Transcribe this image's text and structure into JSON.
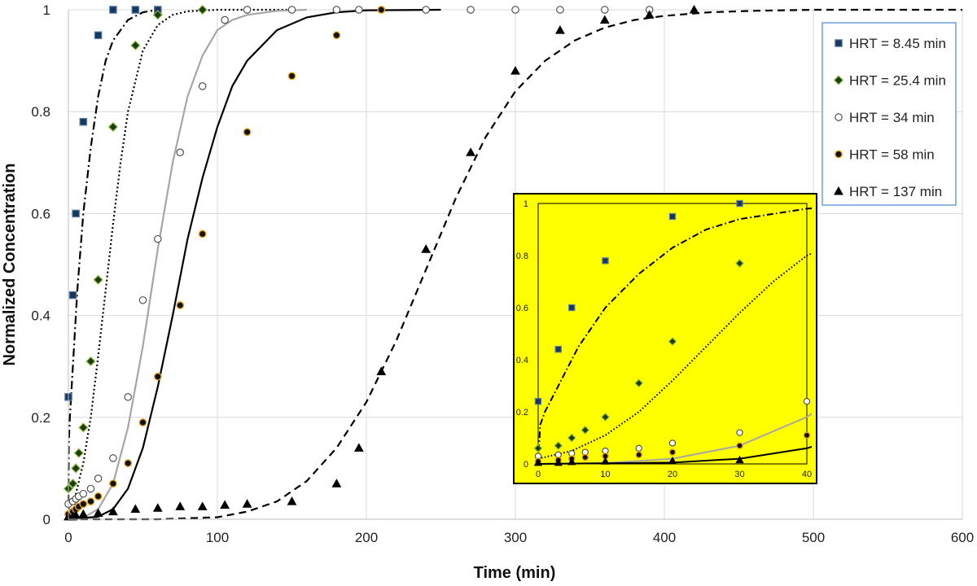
{
  "chart_data": {
    "type": "scatter",
    "xlabel": "Time (min)",
    "ylabel": "Normalized Concentration",
    "xlim": [
      0,
      600
    ],
    "ylim": [
      0,
      1
    ],
    "xticks": [
      0,
      100,
      200,
      300,
      400,
      500,
      600
    ],
    "yticks": [
      0,
      0.2,
      0.4,
      0.6,
      0.8,
      1
    ],
    "grid": true,
    "legend_position": "top-right",
    "series": [
      {
        "name": "HRT = 8.45 min",
        "marker": "square",
        "color": "#17375e",
        "marker_edge": "#5b7fa6",
        "curve_style": "dashdot",
        "curve_color": "#000000",
        "points": [
          [
            0,
            0.24
          ],
          [
            3,
            0.44
          ],
          [
            5,
            0.6
          ],
          [
            10,
            0.78
          ],
          [
            20,
            0.95
          ],
          [
            30,
            1.0
          ],
          [
            45,
            1.0
          ],
          [
            60,
            1.0
          ]
        ],
        "curve": [
          [
            0,
            0.0
          ],
          [
            0.3,
            0.15
          ],
          [
            1,
            0.2
          ],
          [
            3,
            0.3
          ],
          [
            6,
            0.45
          ],
          [
            10,
            0.6
          ],
          [
            15,
            0.73
          ],
          [
            20,
            0.83
          ],
          [
            25,
            0.9
          ],
          [
            30,
            0.94
          ],
          [
            40,
            0.98
          ],
          [
            50,
            0.995
          ],
          [
            60,
            1.0
          ]
        ]
      },
      {
        "name": "HRT = 25.4 min",
        "marker": "diamond",
        "color": "#1e3d12",
        "marker_edge": "#8bbd3f",
        "curve_style": "dotted",
        "curve_color": "#000000",
        "points": [
          [
            0,
            0.06
          ],
          [
            3,
            0.07
          ],
          [
            5,
            0.1
          ],
          [
            7,
            0.13
          ],
          [
            10,
            0.18
          ],
          [
            15,
            0.31
          ],
          [
            20,
            0.47
          ],
          [
            30,
            0.77
          ],
          [
            45,
            0.93
          ],
          [
            60,
            0.99
          ],
          [
            90,
            1.0
          ]
        ],
        "curve": [
          [
            0,
            0.02
          ],
          [
            5,
            0.05
          ],
          [
            10,
            0.11
          ],
          [
            15,
            0.2
          ],
          [
            20,
            0.32
          ],
          [
            25,
            0.45
          ],
          [
            30,
            0.58
          ],
          [
            35,
            0.7
          ],
          [
            40,
            0.8
          ],
          [
            50,
            0.92
          ],
          [
            60,
            0.97
          ],
          [
            70,
            0.99
          ],
          [
            80,
            0.997
          ],
          [
            100,
            1.0
          ],
          [
            150,
            1.0
          ]
        ]
      },
      {
        "name": "HRT = 34 min",
        "marker": "circle-open",
        "color": "#ffffff",
        "marker_edge": "#444444",
        "curve_style": "solid",
        "curve_color": "#a6a6a6",
        "points": [
          [
            0,
            0.03
          ],
          [
            3,
            0.035
          ],
          [
            5,
            0.04
          ],
          [
            7,
            0.045
          ],
          [
            10,
            0.05
          ],
          [
            15,
            0.06
          ],
          [
            20,
            0.08
          ],
          [
            30,
            0.12
          ],
          [
            40,
            0.24
          ],
          [
            50,
            0.43
          ],
          [
            60,
            0.55
          ],
          [
            75,
            0.72
          ],
          [
            90,
            0.85
          ],
          [
            105,
            0.98
          ],
          [
            120,
            1.0
          ],
          [
            150,
            1.0
          ],
          [
            180,
            1.0
          ],
          [
            195,
            1.0
          ],
          [
            210,
            1.0
          ],
          [
            240,
            1.0
          ],
          [
            270,
            1.0
          ],
          [
            300,
            1.0
          ],
          [
            330,
            1.0
          ],
          [
            360,
            1.0
          ],
          [
            390,
            1.0
          ]
        ],
        "curve": [
          [
            0,
            0.0
          ],
          [
            10,
            0.003
          ],
          [
            20,
            0.02
          ],
          [
            30,
            0.07
          ],
          [
            40,
            0.18
          ],
          [
            50,
            0.34
          ],
          [
            60,
            0.53
          ],
          [
            70,
            0.7
          ],
          [
            80,
            0.83
          ],
          [
            90,
            0.91
          ],
          [
            100,
            0.96
          ],
          [
            110,
            0.98
          ],
          [
            120,
            0.99
          ],
          [
            140,
            0.998
          ],
          [
            160,
            1.0
          ]
        ]
      },
      {
        "name": "HRT = 58 min",
        "marker": "circle",
        "color": "#111111",
        "marker_edge": "#e8a41c",
        "curve_style": "solid",
        "curve_color": "#000000",
        "points": [
          [
            0,
            0.01
          ],
          [
            3,
            0.015
          ],
          [
            5,
            0.02
          ],
          [
            7,
            0.025
          ],
          [
            10,
            0.03
          ],
          [
            15,
            0.035
          ],
          [
            20,
            0.045
          ],
          [
            30,
            0.07
          ],
          [
            40,
            0.11
          ],
          [
            50,
            0.19
          ],
          [
            60,
            0.28
          ],
          [
            75,
            0.42
          ],
          [
            90,
            0.56
          ],
          [
            120,
            0.76
          ],
          [
            150,
            0.87
          ],
          [
            180,
            0.95
          ],
          [
            210,
            1.0
          ]
        ],
        "curve": [
          [
            0,
            0.0
          ],
          [
            20,
            0.005
          ],
          [
            30,
            0.02
          ],
          [
            40,
            0.06
          ],
          [
            50,
            0.14
          ],
          [
            60,
            0.26
          ],
          [
            70,
            0.4
          ],
          [
            80,
            0.55
          ],
          [
            90,
            0.67
          ],
          [
            100,
            0.77
          ],
          [
            110,
            0.85
          ],
          [
            120,
            0.9
          ],
          [
            140,
            0.96
          ],
          [
            160,
            0.985
          ],
          [
            180,
            0.995
          ],
          [
            200,
            0.999
          ],
          [
            250,
            1.0
          ]
        ]
      },
      {
        "name": "HRT = 137 min",
        "marker": "triangle",
        "color": "#000000",
        "marker_edge": "#000000",
        "curve_style": "dashed",
        "curve_color": "#000000",
        "points": [
          [
            0,
            0.005
          ],
          [
            3,
            0.005
          ],
          [
            5,
            0.008
          ],
          [
            10,
            0.01
          ],
          [
            20,
            0.012
          ],
          [
            30,
            0.015
          ],
          [
            45,
            0.02
          ],
          [
            60,
            0.022
          ],
          [
            75,
            0.025
          ],
          [
            90,
            0.025
          ],
          [
            105,
            0.028
          ],
          [
            120,
            0.03
          ],
          [
            150,
            0.035
          ],
          [
            180,
            0.07
          ],
          [
            195,
            0.14
          ],
          [
            210,
            0.29
          ],
          [
            240,
            0.53
          ],
          [
            270,
            0.72
          ],
          [
            300,
            0.88
          ],
          [
            330,
            0.96
          ],
          [
            360,
            0.98
          ],
          [
            390,
            0.99
          ],
          [
            420,
            1.0
          ]
        ],
        "curve": [
          [
            0,
            0.0
          ],
          [
            60,
            0.0
          ],
          [
            100,
            0.004
          ],
          [
            120,
            0.015
          ],
          [
            140,
            0.035
          ],
          [
            160,
            0.075
          ],
          [
            180,
            0.14
          ],
          [
            200,
            0.23
          ],
          [
            220,
            0.35
          ],
          [
            240,
            0.49
          ],
          [
            260,
            0.63
          ],
          [
            280,
            0.75
          ],
          [
            300,
            0.84
          ],
          [
            320,
            0.9
          ],
          [
            340,
            0.94
          ],
          [
            360,
            0.965
          ],
          [
            380,
            0.98
          ],
          [
            400,
            0.988
          ],
          [
            430,
            0.995
          ],
          [
            460,
            0.998
          ],
          [
            500,
            1.0
          ],
          [
            600,
            1.0
          ]
        ]
      }
    ],
    "inset": {
      "background": "#ffff00",
      "xlim": [
        0,
        40
      ],
      "ylim": [
        0,
        1
      ],
      "xticks": [
        0,
        10,
        20,
        30,
        40
      ],
      "yticks": [
        0,
        0.2,
        0.4,
        0.6,
        0.8,
        1
      ]
    }
  },
  "labels": {
    "xticks": [
      "0",
      "100",
      "200",
      "300",
      "400",
      "500",
      "600"
    ],
    "yticks": [
      "0",
      "0.2",
      "0.4",
      "0.6",
      "0.8",
      "1"
    ],
    "inset_xticks": [
      "0",
      "10",
      "20",
      "30",
      "40"
    ],
    "inset_yticks": [
      "0",
      "0.2",
      "0.4",
      "0.6",
      "0.8",
      "1"
    ]
  }
}
